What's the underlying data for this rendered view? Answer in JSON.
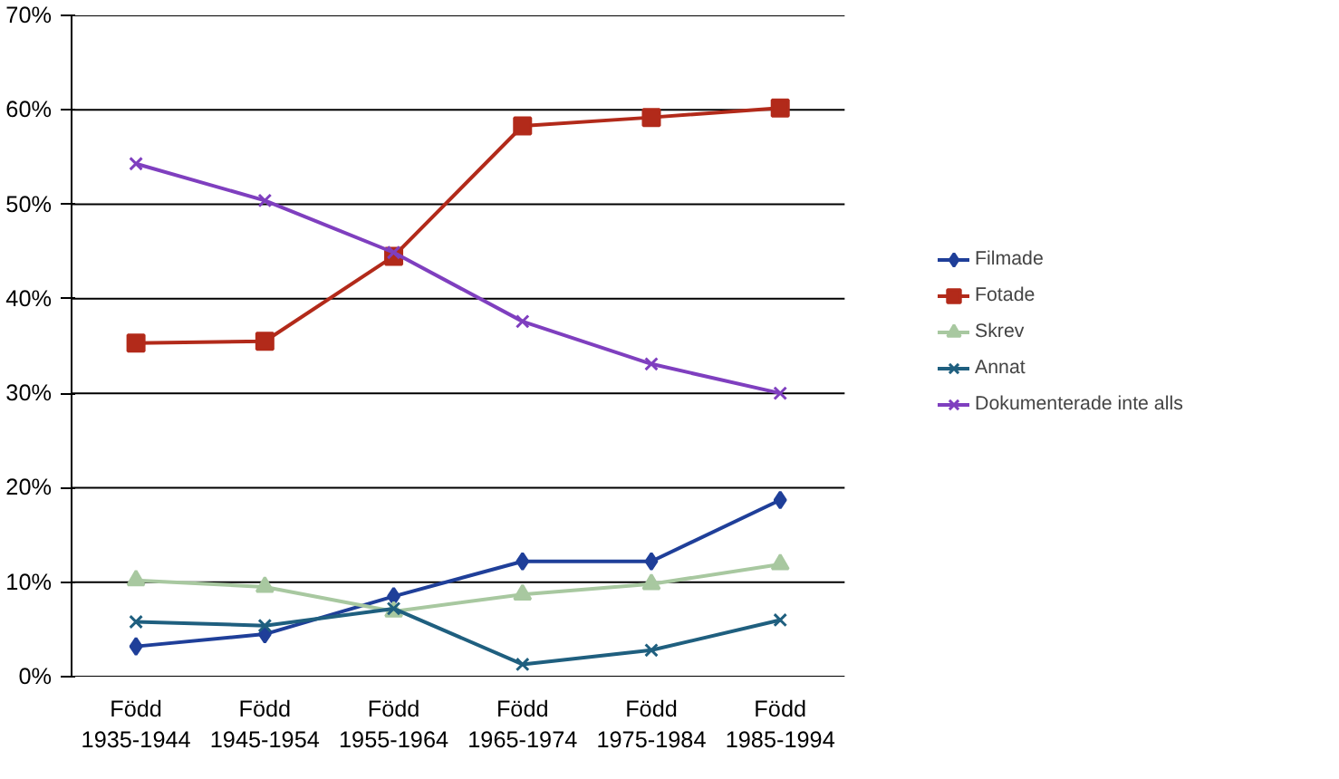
{
  "chart_data": {
    "type": "line",
    "categories": [
      "Född\n1935-1944",
      "Född\n1945-1954",
      "Född\n1955-1964",
      "Född\n1965-1974",
      "Född\n1975-1984",
      "Född\n1985-1994"
    ],
    "series": [
      {
        "name": "Filmade",
        "color": "#1f3f99",
        "marker": "diamond",
        "values": [
          3.2,
          4.5,
          8.5,
          12.2,
          12.2,
          18.7
        ]
      },
      {
        "name": "Fotade",
        "color": "#b22a1a",
        "marker": "square",
        "values": [
          35.3,
          35.5,
          44.5,
          58.3,
          59.2,
          60.2
        ]
      },
      {
        "name": "Skrev",
        "color": "#a8c8a0",
        "marker": "triangle",
        "values": [
          10.2,
          9.5,
          6.9,
          8.7,
          9.8,
          11.9
        ]
      },
      {
        "name": "Annat",
        "color": "#1f5f7f",
        "marker": "cross",
        "values": [
          5.8,
          5.4,
          7.2,
          1.3,
          2.8,
          6.0
        ]
      },
      {
        "name": "Dokumenterade inte alls",
        "color": "#7f3fbf",
        "marker": "cross",
        "values": [
          54.3,
          50.4,
          44.9,
          37.6,
          33.1,
          30.0
        ]
      }
    ],
    "ylim": [
      0,
      70
    ],
    "yticks": [
      {
        "value": 0,
        "label": "0%"
      },
      {
        "value": 10,
        "label": "10%"
      },
      {
        "value": 20,
        "label": "20%"
      },
      {
        "value": 30,
        "label": "30%"
      },
      {
        "value": 40,
        "label": "40%"
      },
      {
        "value": 50,
        "label": "50%"
      },
      {
        "value": 60,
        "label": "60%"
      },
      {
        "value": 70,
        "label": "70%"
      }
    ],
    "grid": "y",
    "legend": "right",
    "line_style": "solid"
  }
}
